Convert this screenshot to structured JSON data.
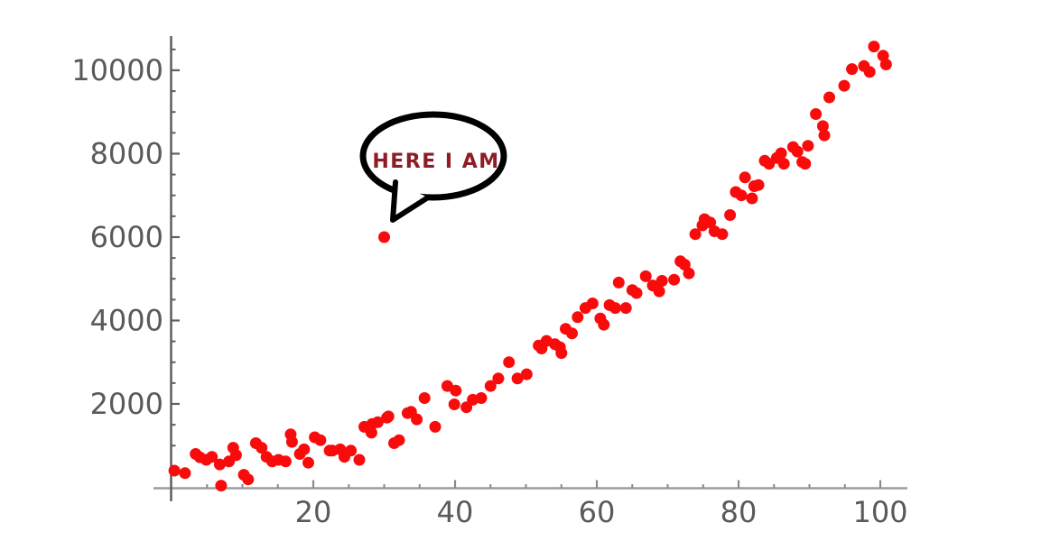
{
  "chart_data": {
    "type": "scatter",
    "title": "",
    "xlabel": "",
    "ylabel": "",
    "xlim": [
      0,
      104
    ],
    "ylim": [
      0,
      10800
    ],
    "grid": false,
    "legend": false,
    "point_color": "#fa0b0b",
    "axis_color_x": "#9e9e9e",
    "axis_color_y": "#5f5f5f",
    "tick_color": "#8a8a8a",
    "tick_label_color": "#5a5a5a",
    "x_ticks": {
      "major": [
        20,
        40,
        60,
        80,
        100
      ],
      "major_labels": [
        "20",
        "40",
        "60",
        "80",
        "100"
      ],
      "minor_step": 5,
      "minor_max": 100
    },
    "y_ticks": {
      "major": [
        2000,
        4000,
        6000,
        8000,
        10000
      ],
      "major_labels": [
        "2000",
        "4000",
        "6000",
        "8000",
        "10000"
      ],
      "minor_step": 500,
      "minor_max": 10500
    },
    "points": [
      [
        0.4,
        400
      ],
      [
        1.9,
        340
      ],
      [
        3.4,
        800
      ],
      [
        4.0,
        720
      ],
      [
        4.9,
        660
      ],
      [
        5.7,
        730
      ],
      [
        6.8,
        550
      ],
      [
        7.0,
        40
      ],
      [
        8.1,
        620
      ],
      [
        8.7,
        950
      ],
      [
        9.1,
        770
      ],
      [
        10.2,
        300
      ],
      [
        10.8,
        190
      ],
      [
        11.9,
        1060
      ],
      [
        12.7,
        950
      ],
      [
        13.4,
        730
      ],
      [
        14.2,
        620
      ],
      [
        15.1,
        660
      ],
      [
        16.1,
        620
      ],
      [
        16.8,
        1270
      ],
      [
        17.0,
        1090
      ],
      [
        18.1,
        800
      ],
      [
        18.7,
        910
      ],
      [
        19.3,
        590
      ],
      [
        20.2,
        1200
      ],
      [
        21.0,
        1130
      ],
      [
        22.3,
        880
      ],
      [
        22.7,
        880
      ],
      [
        23.8,
        910
      ],
      [
        24.4,
        730
      ],
      [
        25.3,
        880
      ],
      [
        26.5,
        660
      ],
      [
        27.2,
        1450
      ],
      [
        28.2,
        1310
      ],
      [
        28.3,
        1520
      ],
      [
        29.1,
        1560
      ],
      [
        30.4,
        1670
      ],
      [
        30.6,
        1700
      ],
      [
        31.4,
        1060
      ],
      [
        32.1,
        1130
      ],
      [
        33.3,
        1780
      ],
      [
        33.8,
        1810
      ],
      [
        34.6,
        1630
      ],
      [
        35.7,
        2140
      ],
      [
        37.2,
        1450
      ],
      [
        38.9,
        2430
      ],
      [
        39.9,
        1990
      ],
      [
        40.1,
        2320
      ],
      [
        41.6,
        1920
      ],
      [
        42.5,
        2100
      ],
      [
        43.7,
        2140
      ],
      [
        45.0,
        2430
      ],
      [
        46.1,
        2610
      ],
      [
        47.6,
        3000
      ],
      [
        48.8,
        2610
      ],
      [
        50.1,
        2710
      ],
      [
        51.8,
        3400
      ],
      [
        52.2,
        3330
      ],
      [
        52.9,
        3510
      ],
      [
        54.1,
        3430
      ],
      [
        54.8,
        3360
      ],
      [
        55.0,
        3220
      ],
      [
        55.6,
        3800
      ],
      [
        56.5,
        3690
      ],
      [
        57.3,
        4080
      ],
      [
        58.4,
        4300
      ],
      [
        59.4,
        4410
      ],
      [
        60.5,
        4050
      ],
      [
        61.0,
        3900
      ],
      [
        61.8,
        4370
      ],
      [
        62.6,
        4300
      ],
      [
        63.1,
        4910
      ],
      [
        64.1,
        4300
      ],
      [
        65.0,
        4730
      ],
      [
        65.6,
        4660
      ],
      [
        66.9,
        5060
      ],
      [
        67.9,
        4840
      ],
      [
        68.8,
        4700
      ],
      [
        69.2,
        4950
      ],
      [
        70.9,
        4980
      ],
      [
        71.8,
        5420
      ],
      [
        72.4,
        5340
      ],
      [
        73.0,
        5130
      ],
      [
        73.9,
        6070
      ],
      [
        74.9,
        6280
      ],
      [
        75.2,
        6430
      ],
      [
        76.0,
        6350
      ],
      [
        76.6,
        6140
      ],
      [
        77.7,
        6070
      ],
      [
        78.8,
        6530
      ],
      [
        79.6,
        7080
      ],
      [
        80.4,
        7000
      ],
      [
        80.9,
        7430
      ],
      [
        81.9,
        6930
      ],
      [
        82.2,
        7220
      ],
      [
        82.8,
        7250
      ],
      [
        83.7,
        7830
      ],
      [
        84.3,
        7760
      ],
      [
        85.4,
        7900
      ],
      [
        86.0,
        8010
      ],
      [
        86.4,
        7760
      ],
      [
        87.7,
        8160
      ],
      [
        88.3,
        8050
      ],
      [
        89.0,
        7800
      ],
      [
        89.4,
        7760
      ],
      [
        89.8,
        8190
      ],
      [
        90.9,
        8950
      ],
      [
        91.9,
        8660
      ],
      [
        92.1,
        8440
      ],
      [
        92.8,
        9350
      ],
      [
        94.9,
        9630
      ],
      [
        96.0,
        10030
      ],
      [
        97.7,
        10100
      ],
      [
        98.5,
        9960
      ],
      [
        99.1,
        10570
      ],
      [
        100.4,
        10350
      ],
      [
        100.8,
        10140
      ]
    ],
    "outlier": {
      "x": 30,
      "y": 6000
    },
    "annotation": {
      "text": "HERE I AM",
      "text_color": "#8e1b25",
      "bubble_stroke": "#000000",
      "bubble_fill": "#ffffff",
      "target": {
        "x": 30,
        "y": 6000
      }
    }
  }
}
